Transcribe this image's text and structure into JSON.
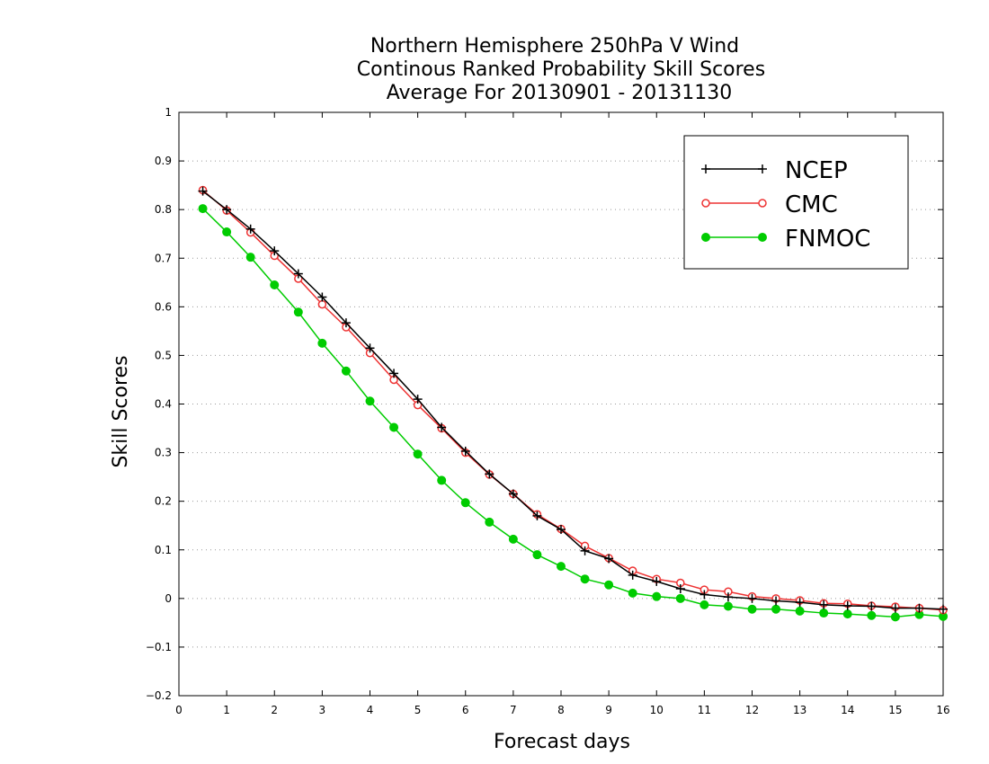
{
  "chart_data": {
    "type": "line",
    "title": [
      "Northern Hemisphere 250hPa V Wind",
      "Continous Ranked Probability Skill Scores",
      "Average For 20130901 - 20131130"
    ],
    "xlabel": "Forecast days",
    "ylabel": "Skill Scores",
    "xlim": [
      0,
      16
    ],
    "ylim": [
      -0.2,
      1
    ],
    "xticks": [
      0,
      1,
      2,
      3,
      4,
      5,
      6,
      7,
      8,
      9,
      10,
      11,
      12,
      13,
      14,
      15,
      16
    ],
    "yticks": [
      -0.2,
      -0.1,
      0,
      0.1,
      0.2,
      0.3,
      0.4,
      0.5,
      0.6,
      0.7,
      0.8,
      0.9,
      1
    ],
    "ytick_labels": [
      "−0.2",
      "−0.1",
      "0",
      "0.1",
      "0.2",
      "0.3",
      "0.4",
      "0.5",
      "0.6",
      "0.7",
      "0.8",
      "0.9",
      "1"
    ],
    "grid": "horizontal-dotted",
    "legend_position": "top-right",
    "x": [
      0.5,
      1,
      1.5,
      2,
      2.5,
      3,
      3.5,
      4,
      4.5,
      5,
      5.5,
      6,
      6.5,
      7,
      7.5,
      8,
      8.5,
      9,
      9.5,
      10,
      10.5,
      11,
      11.5,
      12,
      12.5,
      13,
      13.5,
      14,
      14.5,
      15,
      15.5,
      16
    ],
    "series": [
      {
        "name": "NCEP",
        "color": "#000000",
        "marker": "plus",
        "values": [
          0.838,
          0.8,
          0.76,
          0.715,
          0.668,
          0.62,
          0.567,
          0.515,
          0.463,
          0.41,
          0.352,
          0.303,
          0.256,
          0.215,
          0.17,
          0.142,
          0.098,
          0.082,
          0.048,
          0.035,
          0.02,
          0.008,
          0.003,
          0.0,
          -0.005,
          -0.008,
          -0.013,
          -0.015,
          -0.016,
          -0.02,
          -0.02,
          -0.022
        ]
      },
      {
        "name": "CMC",
        "color": "#ee3333",
        "marker": "open-circle",
        "values": [
          0.84,
          0.798,
          0.753,
          0.705,
          0.658,
          0.605,
          0.558,
          0.505,
          0.45,
          0.398,
          0.35,
          0.3,
          0.255,
          0.215,
          0.173,
          0.143,
          0.108,
          0.083,
          0.057,
          0.04,
          0.032,
          0.018,
          0.014,
          0.004,
          0.0,
          -0.004,
          -0.01,
          -0.011,
          -0.015,
          -0.017,
          -0.02,
          -0.024
        ]
      },
      {
        "name": "FNMOC",
        "color": "#00cc00",
        "marker": "filled-circle",
        "values": [
          0.802,
          0.754,
          0.702,
          0.645,
          0.589,
          0.525,
          0.468,
          0.406,
          0.352,
          0.297,
          0.243,
          0.197,
          0.157,
          0.122,
          0.09,
          0.066,
          0.04,
          0.028,
          0.011,
          0.004,
          0.0,
          -0.013,
          -0.016,
          -0.022,
          -0.022,
          -0.026,
          -0.03,
          -0.032,
          -0.035,
          -0.038,
          -0.033,
          -0.037
        ]
      }
    ]
  }
}
